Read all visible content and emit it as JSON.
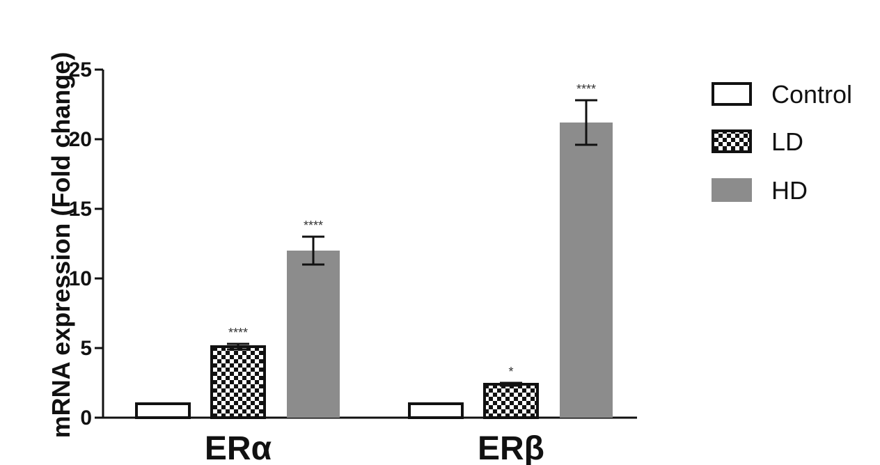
{
  "chart_data": {
    "type": "bar",
    "ylabel": "mRNA expression (Fold change)",
    "xlabel": "",
    "ylim": [
      0,
      25
    ],
    "yticks": [
      "0",
      "5",
      "10",
      "15",
      "20",
      "25"
    ],
    "categories": [
      "ERα",
      "ERβ"
    ],
    "legend_position": "right",
    "series": [
      {
        "name": "Control",
        "values": [
          1.0,
          1.0
        ],
        "errors": [
          0.05,
          0.05
        ],
        "significance": [
          "",
          ""
        ],
        "fill": "#ffffff",
        "pattern": "none"
      },
      {
        "name": "LD",
        "values": [
          5.1,
          2.4
        ],
        "errors": [
          0.2,
          0.1
        ],
        "significance": [
          "****",
          "*"
        ],
        "fill": "#ffffff",
        "pattern": "checker"
      },
      {
        "name": "HD",
        "values": [
          12.0,
          21.2
        ],
        "errors": [
          1.0,
          1.6
        ],
        "significance": [
          "****",
          "****"
        ],
        "fill": "#8c8c8c",
        "pattern": "solid"
      }
    ]
  }
}
